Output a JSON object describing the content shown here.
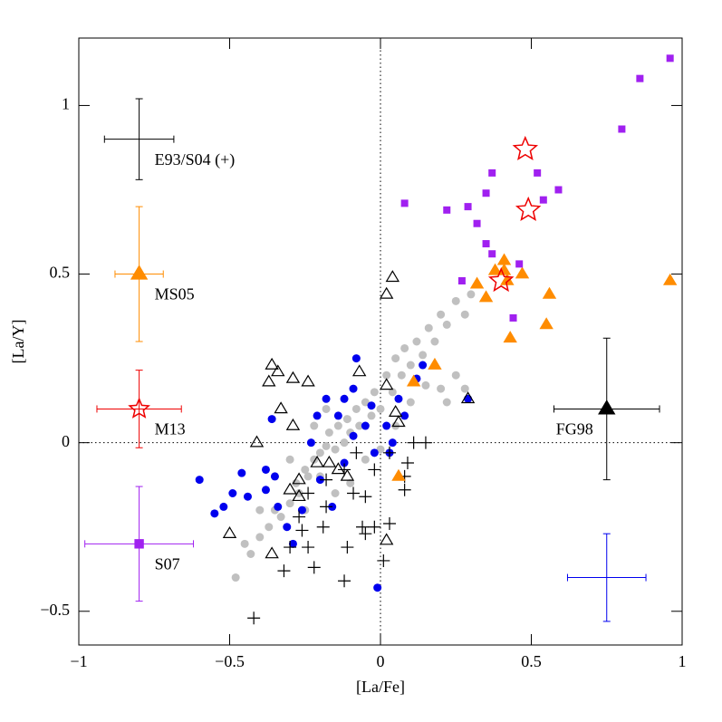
{
  "chart_data": {
    "type": "scatter",
    "xlabel": "[La/Fe]",
    "ylabel": "[La/Y]",
    "xlim": [
      -1,
      1
    ],
    "ylim": [
      -0.6,
      1.2
    ],
    "xticks": [
      {
        "value": -1,
        "label": "−1"
      },
      {
        "value": -0.5,
        "label": "−0.5"
      },
      0,
      0.5,
      1
    ],
    "yticks": [
      {
        "value": -0.5,
        "label": "−0.5"
      },
      0,
      0.5,
      1
    ],
    "zero_lines": true,
    "series": [
      {
        "marker": "circle",
        "color": "#c0c0c0",
        "filled": true,
        "x": [
          -0.48,
          -0.43,
          -0.4,
          -0.37,
          -0.35,
          -0.33,
          -0.3,
          -0.28,
          -0.27,
          -0.25,
          -0.24,
          -0.22,
          -0.2,
          -0.2,
          -0.18,
          -0.17,
          -0.15,
          -0.14,
          -0.12,
          -0.11,
          -0.1,
          -0.08,
          -0.07,
          -0.05,
          -0.03,
          -0.02,
          0.0,
          0.02,
          0.04,
          0.05,
          0.07,
          0.08,
          0.1,
          0.12,
          0.14,
          0.16,
          0.18,
          0.2,
          0.22,
          0.25,
          0.28,
          0.3,
          0.2,
          0.25,
          0.22,
          -0.3,
          -0.22,
          -0.25,
          -0.15,
          -0.1,
          -0.05,
          0.0,
          -0.4,
          -0.35,
          -0.18,
          -0.45,
          0.1,
          0.15,
          0.05,
          0.28
        ],
        "y": [
          -0.4,
          -0.33,
          -0.28,
          -0.25,
          -0.2,
          -0.22,
          -0.18,
          -0.12,
          -0.15,
          -0.08,
          -0.1,
          -0.05,
          -0.03,
          -0.1,
          -0.01,
          0.03,
          -0.02,
          0.05,
          0.0,
          0.07,
          0.03,
          0.1,
          0.05,
          0.12,
          0.08,
          0.15,
          0.1,
          0.2,
          0.15,
          0.25,
          0.2,
          0.28,
          0.23,
          0.3,
          0.26,
          0.34,
          0.3,
          0.38,
          0.35,
          0.42,
          0.38,
          0.44,
          0.16,
          0.2,
          0.12,
          -0.05,
          0.05,
          -0.2,
          -0.15,
          -0.12,
          -0.05,
          -0.02,
          -0.2,
          -0.1,
          0.1,
          -0.3,
          0.12,
          0.17,
          0.05,
          0.16
        ]
      },
      {
        "marker": "circle",
        "color": "#0000ee",
        "filled": true,
        "x": [
          -0.6,
          -0.55,
          -0.52,
          -0.49,
          -0.44,
          -0.46,
          -0.38,
          -0.34,
          -0.31,
          -0.29,
          -0.26,
          -0.36,
          -0.35,
          -0.23,
          -0.2,
          -0.16,
          -0.12,
          -0.08,
          -0.09,
          -0.03,
          0.02,
          0.04,
          0.06,
          0.12,
          0.14,
          0.08,
          0.03,
          -0.05,
          -0.09,
          -0.14,
          -0.18,
          -0.12,
          -0.01,
          0.29,
          -0.21,
          -0.02,
          -0.38
        ],
        "y": [
          -0.11,
          -0.21,
          -0.19,
          -0.15,
          -0.16,
          -0.09,
          -0.14,
          -0.19,
          -0.25,
          -0.3,
          -0.2,
          0.07,
          -0.1,
          0.0,
          -0.11,
          -0.19,
          -0.06,
          0.25,
          0.16,
          0.11,
          0.05,
          0.0,
          0.13,
          0.19,
          0.23,
          0.08,
          -0.03,
          0.05,
          0.02,
          0.08,
          0.13,
          0.13,
          -0.43,
          0.13,
          0.08,
          -0.03,
          -0.08
        ]
      },
      {
        "marker": "triangle",
        "color": "#000000",
        "filled": false,
        "x": [
          0.04,
          0.02,
          -0.36,
          -0.34,
          -0.37,
          -0.29,
          -0.24,
          -0.33,
          -0.29,
          -0.41,
          -0.5,
          -0.36,
          -0.27,
          -0.21,
          -0.27,
          -0.14,
          -0.07,
          0.02,
          0.05,
          0.06,
          0.29,
          0.02,
          -0.3,
          -0.17,
          -0.11
        ],
        "y": [
          0.49,
          0.44,
          0.23,
          0.21,
          0.18,
          0.19,
          0.18,
          0.1,
          0.05,
          0.0,
          -0.27,
          -0.33,
          -0.11,
          -0.06,
          -0.16,
          -0.08,
          0.21,
          0.17,
          0.09,
          0.06,
          0.13,
          -0.29,
          -0.14,
          -0.06,
          -0.1
        ]
      },
      {
        "marker": "plus",
        "color": "#000000",
        "filled": false,
        "x": [
          -0.42,
          -0.32,
          -0.22,
          -0.12,
          0.01,
          -0.05,
          -0.11,
          -0.24,
          -0.26,
          -0.19,
          -0.06,
          -0.02,
          0.03,
          0.08,
          0.08,
          0.09,
          0.11,
          0.15,
          0.03,
          -0.05,
          -0.09,
          -0.18,
          -0.24,
          -0.27,
          -0.12,
          -0.08,
          -0.02,
          -0.18,
          -0.3
        ],
        "y": [
          -0.52,
          -0.38,
          -0.37,
          -0.41,
          -0.35,
          -0.27,
          -0.31,
          -0.31,
          -0.26,
          -0.25,
          -0.25,
          -0.25,
          -0.24,
          -0.1,
          -0.14,
          -0.06,
          0.0,
          0.0,
          -0.03,
          -0.16,
          -0.15,
          -0.19,
          -0.15,
          -0.22,
          -0.08,
          -0.03,
          -0.08,
          -0.11,
          -0.31
        ]
      },
      {
        "marker": "triangle",
        "color": "#ff8c00",
        "filled": true,
        "x": [
          0.96,
          0.56,
          0.55,
          0.47,
          0.41,
          0.41,
          0.42,
          0.32,
          0.35,
          0.43,
          0.18,
          0.11,
          0.06,
          0.38
        ],
        "y": [
          0.48,
          0.44,
          0.35,
          0.5,
          0.54,
          0.51,
          0.48,
          0.47,
          0.43,
          0.31,
          0.23,
          0.18,
          -0.1,
          0.51
        ]
      },
      {
        "marker": "square",
        "color": "#a020f0",
        "filled": true,
        "x": [
          0.96,
          0.86,
          0.8,
          0.59,
          0.52,
          0.54,
          0.37,
          0.35,
          0.29,
          0.22,
          0.08,
          0.32,
          0.35,
          0.37,
          0.46,
          0.27,
          0.44
        ],
        "y": [
          1.14,
          1.08,
          0.93,
          0.75,
          0.8,
          0.72,
          0.8,
          0.74,
          0.7,
          0.69,
          0.71,
          0.65,
          0.59,
          0.56,
          0.53,
          0.48,
          0.37
        ]
      },
      {
        "marker": "star",
        "color": "#ee0000",
        "filled": false,
        "x": [
          0.48,
          0.49,
          0.4
        ],
        "y": [
          0.87,
          0.69,
          0.48
        ]
      }
    ],
    "error_bars": [
      {
        "label": "E93/S04 (+)",
        "x": -0.8,
        "y": 0.9,
        "xerr": 0.115,
        "yerr": 0.12,
        "color": "#000000",
        "marker": "plus"
      },
      {
        "label": "MS05",
        "x": -0.8,
        "y": 0.5,
        "xerr": 0.08,
        "yerr": 0.2,
        "color": "#ff8c00",
        "marker": "triangle"
      },
      {
        "label": "M13",
        "x": -0.8,
        "y": 0.1,
        "xerr": 0.14,
        "yerr": 0.115,
        "color": "#ee0000",
        "marker": "star"
      },
      {
        "label": "S07",
        "x": -0.8,
        "y": -0.3,
        "xerr": 0.18,
        "yerr": 0.17,
        "color": "#a020f0",
        "marker": "square"
      },
      {
        "label": "FG98",
        "x": 0.75,
        "y": 0.1,
        "xerr": 0.175,
        "yerr": 0.21,
        "color": "#000000",
        "marker": "triangle"
      },
      {
        "x": 0.75,
        "y": -0.4,
        "xerr": 0.13,
        "yerr": 0.13,
        "color": "#0000ee"
      }
    ]
  }
}
